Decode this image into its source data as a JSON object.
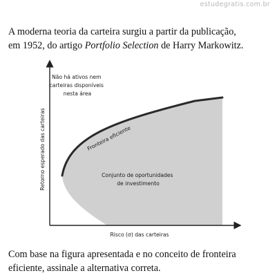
{
  "watermark": "estudegratis.com.br",
  "question": {
    "intro_line1": "A moderna teoria da carteira surgiu a partir da publicação,",
    "intro_line2_pre": "em 1952, do artigo ",
    "intro_line2_title": "Portfolio Selection",
    "intro_line2_post": " de Harry Markowitz.",
    "prompt_line1": "Com base na figura apresentada e no conceito de fronteira",
    "prompt_line2": "eficiente, assinale a alternativa correta."
  },
  "figure": {
    "no_assets_label": [
      "Não há ativos nem",
      "carteiras disponíveis",
      "nesta área"
    ],
    "frontier_label": "Fronteira eficiente",
    "opportunity_label": [
      "Conjunto de oportunidades",
      "de investimento"
    ],
    "x_axis_label": "Risco (σ) das carteiras",
    "y_axis_label": "Retorno esperado das carteiras",
    "colors": {
      "region_fill": "#d0d0d0",
      "frontier": "#2a2a2a",
      "axis": "#222222"
    }
  }
}
